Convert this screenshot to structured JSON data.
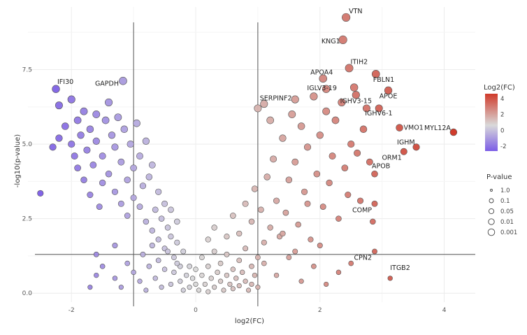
{
  "chart_data": {
    "type": "scatter",
    "title": "",
    "xlabel": "log2(FC)",
    "ylabel": "-log10(p-value)",
    "xlim": [
      -2.7,
      4.5
    ],
    "ylim": [
      -0.3,
      9.6
    ],
    "x_ticks": [
      -2,
      0,
      2,
      4
    ],
    "y_ticks": [
      0.0,
      2.5,
      5.0,
      7.5
    ],
    "x_tick_labels": [
      "-2",
      "0",
      "2",
      "4"
    ],
    "y_tick_labels": [
      "0.0",
      "2.5",
      "5.0",
      "7.5"
    ],
    "grid": true,
    "reference_lines": {
      "x": [
        -1,
        1
      ],
      "y": [
        1.3
      ]
    },
    "color_legend": {
      "title": "Log2(FC)",
      "ticks": [
        4,
        2,
        0,
        -2
      ],
      "tick_labels": [
        "4",
        "2",
        "0",
        "-2"
      ],
      "low_color": "#7b5ce6",
      "mid_color": "#d9d9d9",
      "high_color": "#d03a2a",
      "placement": "right"
    },
    "size_legend": {
      "title": "P-value",
      "labels": [
        "1.0",
        "0.1",
        "0.05",
        "0.01",
        "0.001"
      ]
    },
    "labeled_points": [
      {
        "label": "VTN",
        "x": 2.42,
        "y": 9.25
      },
      {
        "label": "KNG1",
        "x": 2.37,
        "y": 8.5
      },
      {
        "label": "ITIH2",
        "x": 2.47,
        "y": 7.55
      },
      {
        "label": "APOA4",
        "x": 2.05,
        "y": 7.2
      },
      {
        "label": "FBLN1",
        "x": 2.9,
        "y": 7.35
      },
      {
        "label": "IGLV3-19",
        "x": 2.1,
        "y": 6.85
      },
      {
        "label": "APOE",
        "x": 3.1,
        "y": 6.8
      },
      {
        "label": "IGHV3-15",
        "x": 2.58,
        "y": 6.65
      },
      {
        "label": "SERPINF2",
        "x": 1.1,
        "y": 6.35
      },
      {
        "label": "IGHV6-1",
        "x": 2.95,
        "y": 6.2
      },
      {
        "label": "VMO1",
        "x": 3.28,
        "y": 5.55
      },
      {
        "label": "MYL12A",
        "x": 4.15,
        "y": 5.4
      },
      {
        "label": "IGHM",
        "x": 3.55,
        "y": 4.9
      },
      {
        "label": "ORM1",
        "x": 3.35,
        "y": 4.75
      },
      {
        "label": "APOB",
        "x": 2.88,
        "y": 4.0
      },
      {
        "label": "COMP",
        "x": 2.88,
        "y": 3.0
      },
      {
        "label": "CPN2",
        "x": 2.88,
        "y": 1.4
      },
      {
        "label": "ITGB2",
        "x": 3.13,
        "y": 0.5
      },
      {
        "label": "IFI30",
        "x": -2.25,
        "y": 6.85
      },
      {
        "label": "GAPDH",
        "x": -1.17,
        "y": 7.12
      }
    ],
    "points": [
      [
        -2.5,
        3.35
      ],
      [
        -2.3,
        4.9
      ],
      [
        -2.2,
        6.3
      ],
      [
        -2.2,
        5.2
      ],
      [
        -2.1,
        5.6
      ],
      [
        -2.0,
        6.5
      ],
      [
        -2.0,
        5.0
      ],
      [
        -1.95,
        4.6
      ],
      [
        -1.9,
        4.2
      ],
      [
        -1.9,
        5.8
      ],
      [
        -1.85,
        5.3
      ],
      [
        -1.8,
        6.1
      ],
      [
        -1.8,
        3.8
      ],
      [
        -1.75,
        4.8
      ],
      [
        -1.7,
        5.5
      ],
      [
        -1.7,
        3.3
      ],
      [
        -1.65,
        4.3
      ],
      [
        -1.6,
        6.0
      ],
      [
        -1.6,
        5.1
      ],
      [
        -1.55,
        2.9
      ],
      [
        -1.5,
        4.6
      ],
      [
        -1.5,
        3.7
      ],
      [
        -1.45,
        5.8
      ],
      [
        -1.4,
        6.4
      ],
      [
        -1.4,
        4.0
      ],
      [
        -1.35,
        5.3
      ],
      [
        -1.3,
        3.4
      ],
      [
        -1.3,
        4.9
      ],
      [
        -1.25,
        5.9
      ],
      [
        -1.2,
        3.0
      ],
      [
        -1.2,
        4.4
      ],
      [
        -1.15,
        5.5
      ],
      [
        -1.1,
        2.6
      ],
      [
        -1.1,
        3.8
      ],
      [
        -1.05,
        5.0
      ],
      [
        -1.0,
        4.2
      ],
      [
        -1.0,
        3.2
      ],
      [
        -0.95,
        5.7
      ],
      [
        -0.9,
        2.9
      ],
      [
        -0.9,
        4.6
      ],
      [
        -0.85,
        3.6
      ],
      [
        -0.8,
        2.4
      ],
      [
        -0.8,
        5.1
      ],
      [
        -0.75,
        3.9
      ],
      [
        -0.7,
        2.1
      ],
      [
        -0.7,
        4.3
      ],
      [
        -0.65,
        2.8
      ],
      [
        -0.6,
        3.4
      ],
      [
        -0.6,
        1.8
      ],
      [
        -0.55,
        2.5
      ],
      [
        -0.5,
        3.0
      ],
      [
        -0.5,
        1.5
      ],
      [
        -0.45,
        2.2
      ],
      [
        -0.4,
        1.9
      ],
      [
        -0.4,
        2.8
      ],
      [
        -0.35,
        1.2
      ],
      [
        -0.3,
        1.7
      ],
      [
        -0.3,
        2.4
      ],
      [
        -0.25,
        0.9
      ],
      [
        -0.2,
        1.4
      ],
      [
        -1.6,
        1.3
      ],
      [
        -1.5,
        0.9
      ],
      [
        -1.7,
        0.2
      ],
      [
        -1.6,
        0.6
      ],
      [
        -1.3,
        1.6
      ],
      [
        -1.3,
        0.5
      ],
      [
        -1.2,
        0.2
      ],
      [
        -1.1,
        1.0
      ],
      [
        -1.0,
        0.7
      ],
      [
        -0.9,
        0.4
      ],
      [
        -0.85,
        1.3
      ],
      [
        -0.8,
        0.1
      ],
      [
        -0.75,
        0.9
      ],
      [
        -0.7,
        1.6
      ],
      [
        -0.65,
        0.5
      ],
      [
        -0.6,
        1.1
      ],
      [
        -0.55,
        0.2
      ],
      [
        -0.5,
        0.8
      ],
      [
        -0.45,
        1.4
      ],
      [
        -0.4,
        0.3
      ],
      [
        -0.35,
        0.7
      ],
      [
        -0.3,
        1.0
      ],
      [
        -0.25,
        0.4
      ],
      [
        -0.2,
        0.1
      ],
      [
        -0.15,
        0.6
      ],
      [
        -0.1,
        0.9
      ],
      [
        -0.1,
        0.2
      ],
      [
        -0.05,
        0.5
      ],
      [
        0.0,
        0.3
      ],
      [
        0.0,
        0.8
      ],
      [
        0.05,
        0.1
      ],
      [
        0.1,
        0.6
      ],
      [
        0.1,
        1.2
      ],
      [
        0.15,
        0.3
      ],
      [
        0.2,
        0.9
      ],
      [
        0.2,
        0.05
      ],
      [
        0.25,
        0.5
      ],
      [
        0.3,
        1.4
      ],
      [
        0.3,
        0.2
      ],
      [
        0.35,
        0.7
      ],
      [
        0.4,
        0.4
      ],
      [
        0.4,
        1.0
      ],
      [
        0.45,
        0.1
      ],
      [
        0.5,
        0.6
      ],
      [
        0.5,
        1.3
      ],
      [
        0.55,
        0.3
      ],
      [
        0.6,
        0.8
      ],
      [
        0.6,
        0.15
      ],
      [
        0.65,
        0.5
      ],
      [
        0.7,
        1.1
      ],
      [
        0.7,
        0.25
      ],
      [
        0.75,
        0.7
      ],
      [
        0.8,
        0.4
      ],
      [
        0.8,
        1.5
      ],
      [
        0.85,
        0.1
      ],
      [
        0.9,
        0.9
      ],
      [
        0.9,
        0.3
      ],
      [
        0.95,
        0.6
      ],
      [
        1.0,
        1.2
      ],
      [
        1.0,
        0.2
      ],
      [
        0.2,
        1.8
      ],
      [
        0.3,
        2.2
      ],
      [
        0.5,
        1.9
      ],
      [
        0.6,
        2.6
      ],
      [
        0.7,
        2.0
      ],
      [
        0.8,
        3.0
      ],
      [
        0.9,
        2.4
      ],
      [
        0.95,
        3.5
      ],
      [
        1.05,
        2.8
      ],
      [
        1.1,
        1.7
      ],
      [
        1.15,
        3.9
      ],
      [
        1.2,
        2.2
      ],
      [
        1.25,
        4.5
      ],
      [
        1.3,
        3.1
      ],
      [
        1.35,
        1.9
      ],
      [
        1.4,
        5.2
      ],
      [
        1.45,
        2.7
      ],
      [
        1.5,
        3.8
      ],
      [
        1.55,
        6.0
      ],
      [
        1.6,
        4.4
      ],
      [
        1.65,
        2.3
      ],
      [
        1.7,
        5.6
      ],
      [
        1.75,
        3.4
      ],
      [
        1.8,
        4.9
      ],
      [
        1.85,
        1.8
      ],
      [
        1.9,
        6.6
      ],
      [
        1.95,
        4.0
      ],
      [
        2.0,
        5.3
      ],
      [
        2.05,
        2.9
      ],
      [
        2.1,
        6.1
      ],
      [
        2.15,
        3.7
      ],
      [
        2.2,
        4.6
      ],
      [
        2.25,
        5.8
      ],
      [
        2.3,
        2.5
      ],
      [
        2.35,
        6.4
      ],
      [
        2.4,
        4.2
      ],
      [
        2.45,
        3.3
      ],
      [
        2.5,
        5.0
      ],
      [
        2.55,
        6.9
      ],
      [
        2.6,
        4.7
      ],
      [
        2.65,
        3.1
      ],
      [
        2.7,
        5.5
      ],
      [
        2.75,
        6.2
      ],
      [
        2.8,
        4.4
      ],
      [
        2.85,
        2.4
      ],
      [
        1.1,
        1.0
      ],
      [
        1.3,
        0.6
      ],
      [
        1.5,
        1.2
      ],
      [
        1.7,
        0.4
      ],
      [
        1.9,
        0.9
      ],
      [
        2.1,
        0.3
      ],
      [
        2.3,
        0.7
      ],
      [
        2.5,
        1.0
      ],
      [
        1.2,
        5.8
      ],
      [
        1.0,
        6.2
      ],
      [
        1.6,
        6.5
      ],
      [
        1.8,
        3.0
      ],
      [
        2.0,
        1.6
      ],
      [
        1.4,
        2.0
      ],
      [
        1.6,
        1.4
      ]
    ]
  }
}
